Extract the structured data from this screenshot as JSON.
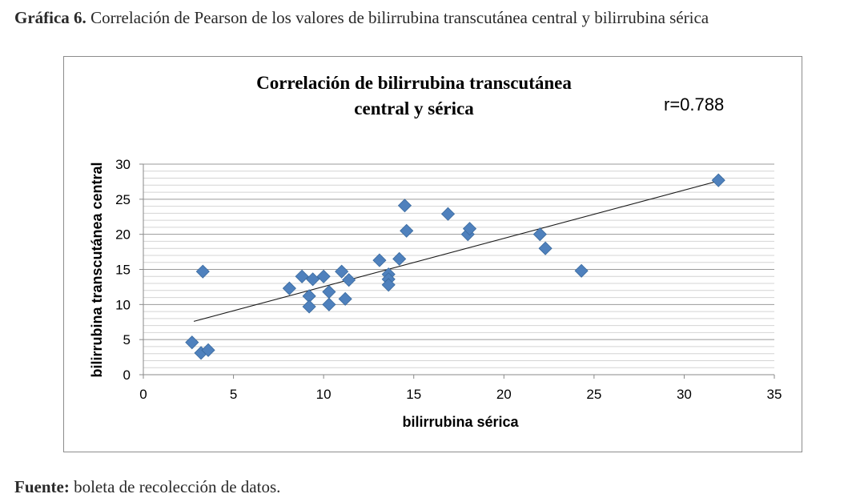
{
  "caption": {
    "label": "Gráfica 6.",
    "text": " Correlación de Pearson de los valores de bilirrubina transcutánea central y bilirrubina sérica"
  },
  "source": {
    "label": "Fuente:",
    "text": " boleta de recolección de datos."
  },
  "chart_data": {
    "type": "scatter",
    "title": "Correlación de bilirrubina transcutánea central y sérica",
    "title_lines": [
      "Correlación de bilirrubina transcutánea",
      "central y sérica"
    ],
    "annotation": "r=0.788",
    "xlabel": "bilirrubina sérica",
    "ylabel": "bilirrubina transcutánea central",
    "xlim": [
      0,
      35
    ],
    "ylim": [
      0,
      30
    ],
    "x_ticks": [
      0,
      5,
      10,
      15,
      20,
      25,
      30,
      35
    ],
    "y_ticks": [
      0,
      5,
      10,
      15,
      20,
      25,
      30
    ],
    "minor_y_step": 1,
    "grid": true,
    "marker": "diamond",
    "marker_color": "#4f81bd",
    "trendline": {
      "x": [
        2.8,
        31.9
      ],
      "y": [
        7.6,
        27.6
      ]
    },
    "points": [
      {
        "x": 2.7,
        "y": 4.6
      },
      {
        "x": 3.2,
        "y": 3.1
      },
      {
        "x": 3.6,
        "y": 3.5
      },
      {
        "x": 3.3,
        "y": 14.7
      },
      {
        "x": 8.1,
        "y": 12.3
      },
      {
        "x": 8.8,
        "y": 14.0
      },
      {
        "x": 9.2,
        "y": 11.2
      },
      {
        "x": 9.2,
        "y": 9.7
      },
      {
        "x": 9.4,
        "y": 13.6
      },
      {
        "x": 10.0,
        "y": 14.0
      },
      {
        "x": 10.3,
        "y": 11.8
      },
      {
        "x": 10.3,
        "y": 10.0
      },
      {
        "x": 11.0,
        "y": 14.7
      },
      {
        "x": 11.2,
        "y": 10.8
      },
      {
        "x": 11.4,
        "y": 13.5
      },
      {
        "x": 13.1,
        "y": 16.3
      },
      {
        "x": 13.6,
        "y": 14.3
      },
      {
        "x": 13.6,
        "y": 13.6
      },
      {
        "x": 13.6,
        "y": 12.8
      },
      {
        "x": 14.2,
        "y": 16.5
      },
      {
        "x": 14.5,
        "y": 24.1
      },
      {
        "x": 14.6,
        "y": 20.5
      },
      {
        "x": 16.9,
        "y": 22.9
      },
      {
        "x": 18.0,
        "y": 20.0
      },
      {
        "x": 18.1,
        "y": 20.8
      },
      {
        "x": 22.0,
        "y": 20.0
      },
      {
        "x": 22.3,
        "y": 18.0
      },
      {
        "x": 24.3,
        "y": 14.8
      },
      {
        "x": 31.9,
        "y": 27.7
      }
    ]
  }
}
